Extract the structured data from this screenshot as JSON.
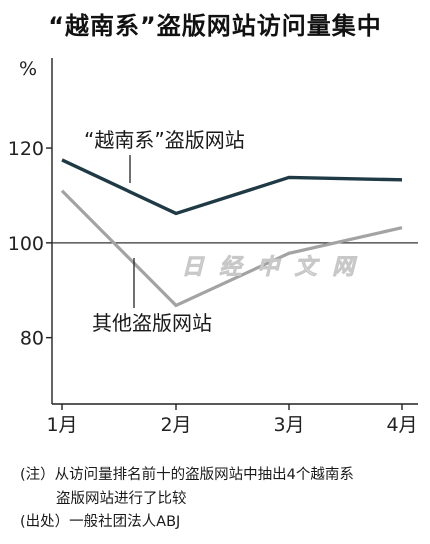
{
  "title": "“越南系”盗版网站访问量集中",
  "watermark": "日 经 中 文 网",
  "chart_data": {
    "type": "line",
    "categories": [
      "1月",
      "2月",
      "3月",
      "4月"
    ],
    "ylabel": "%",
    "yticks": [
      80,
      100,
      120
    ],
    "ylim": [
      66,
      139
    ],
    "reference_line": 100,
    "grid": false,
    "series": [
      {
        "name": "“越南系”盗版网站",
        "values": [
          117.5,
          106.2,
          113.8,
          113.3
        ],
        "color": "#1f3a44"
      },
      {
        "name": "其他盗版网站",
        "values": [
          111,
          86.8,
          97.8,
          103.2
        ],
        "color": "#a3a3a3"
      }
    ]
  },
  "notes": [
    "(注）从访问量排名前十的盗版网站中抽出4个越南系",
    "盗版网站进行了比较",
    "(出处）一般社团法人ABJ"
  ]
}
